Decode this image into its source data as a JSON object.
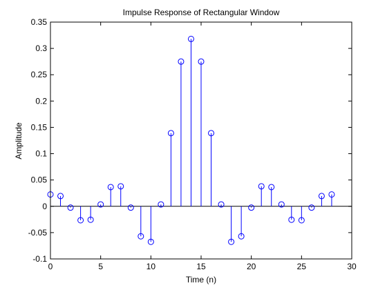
{
  "chart_data": {
    "type": "stem",
    "title": "Impulse Response of Rectangular Window",
    "xlabel": "Time (n)",
    "ylabel": "Amplitude",
    "xlim": [
      0,
      30
    ],
    "ylim": [
      -0.1,
      0.35
    ],
    "xticks": [
      0,
      5,
      10,
      15,
      20,
      25,
      30
    ],
    "xtick_labels": [
      "0",
      "5",
      "10",
      "15",
      "20",
      "25",
      "30"
    ],
    "yticks": [
      -0.1,
      -0.05,
      0,
      0.05,
      0.1,
      0.15,
      0.2,
      0.25,
      0.3,
      0.35
    ],
    "ytick_labels": [
      "-0.1",
      "-0.05",
      "0",
      "0.05",
      "0.1",
      "0.15",
      "0.2",
      "0.25",
      "0.3",
      "0.35"
    ],
    "grid": false,
    "legend": "none",
    "marker": "circle-open",
    "color": "#0000ff",
    "baseline": 0,
    "x": [
      0,
      1,
      2,
      3,
      4,
      5,
      6,
      7,
      8,
      9,
      10,
      11,
      12,
      13,
      14,
      15,
      16,
      17,
      18,
      19,
      20,
      21,
      22,
      23,
      24,
      25,
      26,
      27,
      28
    ],
    "y": [
      0.0225,
      0.0195,
      -0.0025,
      -0.0265,
      -0.0255,
      0.0035,
      0.0365,
      0.038,
      -0.0025,
      -0.057,
      -0.0675,
      0.0035,
      0.139,
      0.275,
      0.318,
      0.275,
      0.139,
      0.0035,
      -0.0675,
      -0.057,
      -0.0025,
      0.038,
      0.0365,
      0.0035,
      -0.0255,
      -0.0265,
      -0.0025,
      0.0195,
      0.0225
    ]
  }
}
